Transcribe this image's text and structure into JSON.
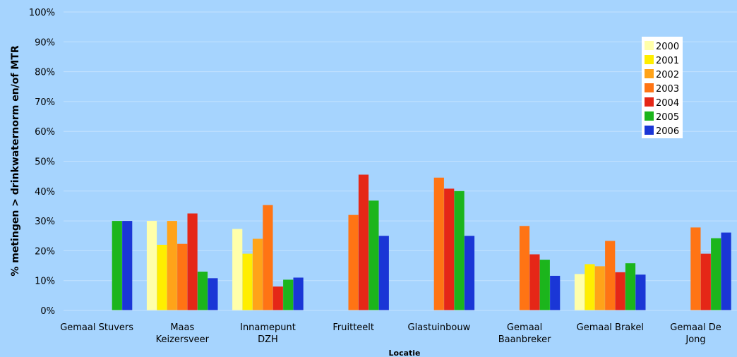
{
  "chart_data": {
    "type": "bar",
    "xlabel": "Locatie",
    "ylabel": "% metingen > drinkwaternorm en/of MTR",
    "ylim": [
      0,
      100
    ],
    "y_ticks": [
      "0%",
      "10%",
      "20%",
      "30%",
      "40%",
      "50%",
      "60%",
      "70%",
      "80%",
      "90%",
      "100%"
    ],
    "categories": [
      [
        "Gemaal Stuvers"
      ],
      [
        "Maas",
        "Keizersveer"
      ],
      [
        "Innamepunt",
        "DZH"
      ],
      [
        "Fruitteelt"
      ],
      [
        "Glastuinbouw"
      ],
      [
        "Gemaal",
        "Baanbreker"
      ],
      [
        "Gemaal Brakel"
      ],
      [
        "Gemaal De",
        "Jong"
      ]
    ],
    "grid": true,
    "legend_position": "top-right",
    "series": [
      {
        "name": "2000",
        "color": "#ffffaa",
        "values": [
          0,
          30,
          27.3,
          0,
          0,
          0,
          12.2,
          0
        ]
      },
      {
        "name": "2001",
        "color": "#ffee00",
        "values": [
          0,
          22,
          19,
          0,
          0,
          0,
          15.5,
          0
        ]
      },
      {
        "name": "2002",
        "color": "#ffa319",
        "values": [
          0,
          30,
          24,
          0,
          0,
          0,
          14.8,
          0
        ]
      },
      {
        "name": "2003",
        "color": "#ff7414",
        "values": [
          0,
          22.3,
          35.3,
          32,
          44.5,
          28.3,
          23.3,
          27.8
        ]
      },
      {
        "name": "2004",
        "color": "#e52717",
        "values": [
          0,
          32.5,
          8,
          45.5,
          40.8,
          18.8,
          12.8,
          19
        ]
      },
      {
        "name": "2005",
        "color": "#1cb51c",
        "values": [
          30,
          13,
          10.3,
          36.8,
          40,
          17,
          15.8,
          24.2
        ]
      },
      {
        "name": "2006",
        "color": "#1a36d6",
        "values": [
          30,
          10.8,
          11,
          25,
          25,
          11.6,
          12,
          26.1
        ]
      }
    ]
  }
}
